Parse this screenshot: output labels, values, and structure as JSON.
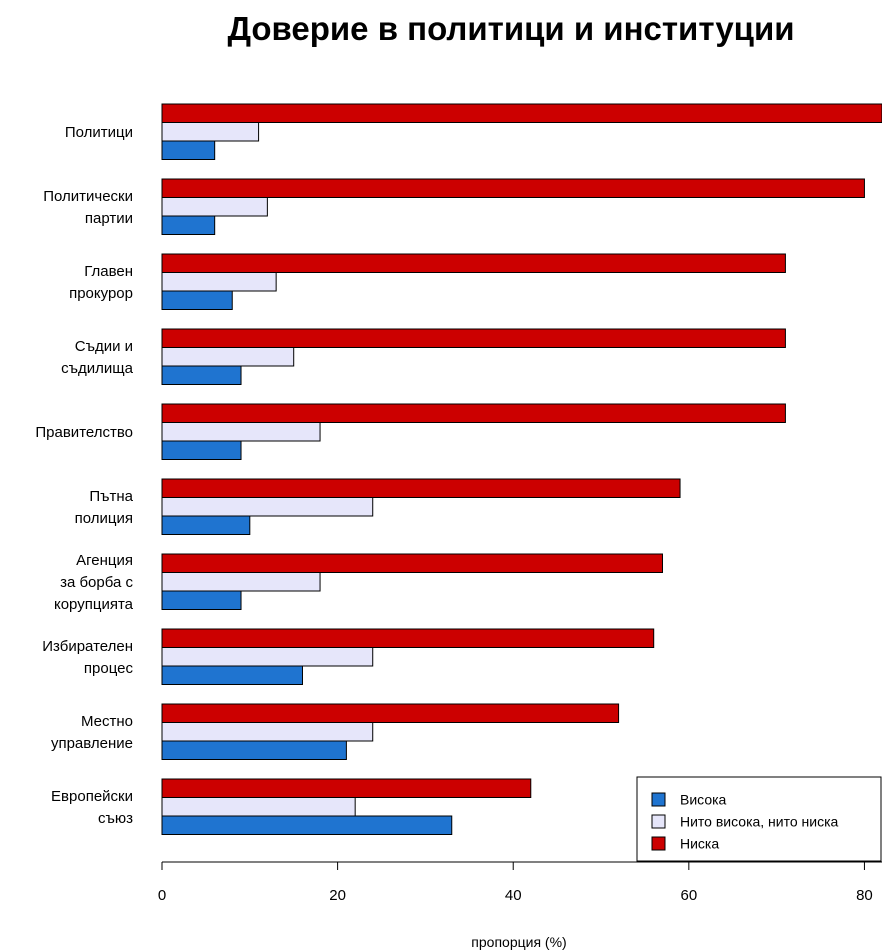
{
  "chart_data": {
    "type": "bar",
    "orientation": "horizontal",
    "title": "Доверие в политици и институции",
    "xlabel": "пропорция (%)",
    "ylabel": "",
    "xlim": [
      0,
      82
    ],
    "xticks": [
      0,
      20,
      40,
      60,
      80
    ],
    "categories": [
      "Политици",
      "Политически партии",
      "Главен прокурор",
      "Съдии и съдилища",
      "Правителство",
      "Пътна полиция",
      "Агенция за борба с корупцията",
      "Избирателен процес",
      "Местно управление",
      "Европейски съюз"
    ],
    "category_lines": [
      [
        "Политици"
      ],
      [
        "Политически",
        "партии"
      ],
      [
        "Главен",
        "прокурор"
      ],
      [
        "Съдии и",
        "съдилища"
      ],
      [
        "Правителство"
      ],
      [
        "Пътна",
        "полиция"
      ],
      [
        "Агенция",
        "за борба с",
        "корупцията"
      ],
      [
        "Избирателен",
        "процес"
      ],
      [
        "Местно",
        "управление"
      ],
      [
        "Европейски",
        "съюз"
      ]
    ],
    "series": [
      {
        "name": "Висока",
        "color": "#1f74d0",
        "values": [
          6,
          6,
          8,
          9,
          9,
          10,
          9,
          16,
          21,
          33
        ]
      },
      {
        "name": "Нито висока, нито ниска",
        "color": "#e6e6fa",
        "values": [
          11,
          12,
          13,
          15,
          18,
          24,
          18,
          24,
          24,
          22
        ]
      },
      {
        "name": "Ниска",
        "color": "#cc0000",
        "values": [
          82,
          80,
          71,
          71,
          71,
          59,
          57,
          56,
          52,
          42
        ]
      }
    ],
    "legend": {
      "placement": "bottom-right"
    },
    "grid": false
  }
}
